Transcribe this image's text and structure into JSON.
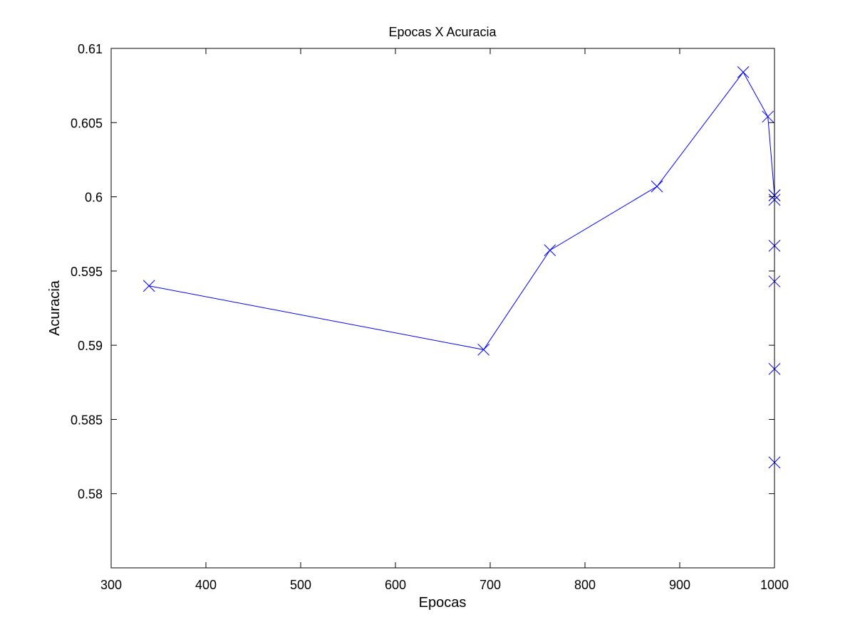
{
  "chart_data": {
    "type": "line",
    "title": "Epocas X Acuracia",
    "xlabel": "Epocas",
    "ylabel": "Acuracia",
    "xlim": [
      300,
      1000
    ],
    "ylim": [
      0.575,
      0.61
    ],
    "x_ticks": [
      300,
      400,
      500,
      600,
      700,
      800,
      900,
      1000
    ],
    "x_tick_labels": [
      "300",
      "400",
      "500",
      "600",
      "700",
      "800",
      "900",
      "1000"
    ],
    "y_ticks": [
      0.58,
      0.585,
      0.59,
      0.595,
      0.6,
      0.605,
      0.61
    ],
    "y_tick_labels": [
      "0.58",
      "0.585",
      "0.59",
      "0.595",
      "0.6",
      "0.605",
      "0.61"
    ],
    "grid": false,
    "legend": "none",
    "series": [
      {
        "color": "#0000ff",
        "marker": "x",
        "line": "solid",
        "x": [
          340,
          693,
          763,
          876,
          967,
          993,
          1000,
          1000,
          1000,
          1000,
          1000,
          1000,
          1000
        ],
        "y": [
          0.594,
          0.5897,
          0.5964,
          0.6007,
          0.6084,
          0.6054,
          0.6001,
          0.5998,
          0.5967,
          0.5943,
          0.5884,
          0.5821,
          0.6001
        ]
      }
    ]
  }
}
